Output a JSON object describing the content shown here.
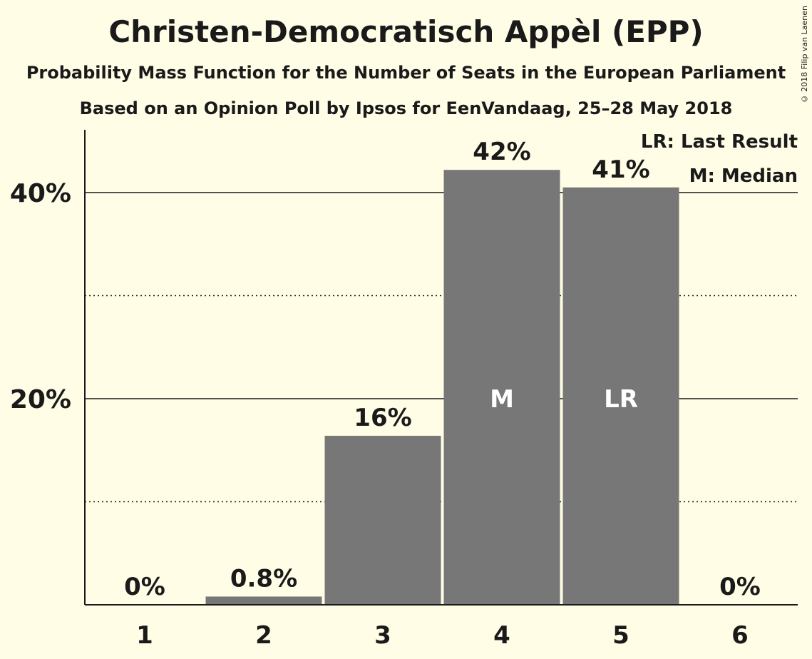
{
  "title": "Christen-Democratisch Appèl (EPP)",
  "subtitle1": "Probability Mass Function for the Number of Seats in the European Parliament",
  "subtitle2": "Based on an Opinion Poll by Ipsos for EenVandaag, 25–28 May 2018",
  "copyright": "© 2018 Filip van Laenen",
  "legend": {
    "lr": "LR: Last Result",
    "m": "M: Median"
  },
  "chart_data": {
    "type": "bar",
    "categories": [
      "1",
      "2",
      "3",
      "4",
      "5",
      "6"
    ],
    "values": [
      0,
      0.8,
      16.4,
      42.2,
      40.5,
      0
    ],
    "data_labels": [
      "0%",
      "0.8%",
      "16%",
      "42%",
      "41%",
      "0%"
    ],
    "bar_markers": [
      "",
      "",
      "",
      "M",
      "LR",
      ""
    ],
    "ylim": [
      0,
      46
    ],
    "yticks": [
      {
        "value": 20,
        "label": "20%"
      },
      {
        "value": 40,
        "label": "40%"
      }
    ],
    "minor_gridlines": [
      10,
      30
    ],
    "bar_color": "#777777",
    "background_color": "#fffde6",
    "legend_position": "top-right"
  }
}
